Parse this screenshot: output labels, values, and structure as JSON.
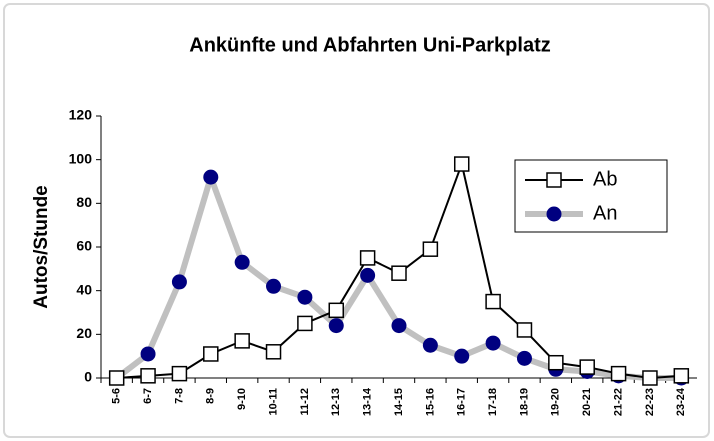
{
  "chart_data": {
    "type": "line",
    "title": "Ankünfte und Abfahrten Uni-Parkplatz",
    "y_label": "Autos/Stunde",
    "categories": [
      "5-6",
      "6-7",
      "7-8",
      "8-9",
      "9-10",
      "10-11",
      "11-12",
      "12-13",
      "13-14",
      "14-15",
      "15-16",
      "16-17",
      "17-18",
      "18-19",
      "19-20",
      "20-21",
      "21-22",
      "22-23",
      "23-24"
    ],
    "series": [
      {
        "name": "Ab",
        "color": "#000000",
        "marker": "square",
        "marker_color": "#ffffff",
        "values": [
          0,
          1,
          2,
          11,
          17,
          12,
          25,
          31,
          55,
          48,
          59,
          98,
          35,
          22,
          7,
          5,
          2,
          0,
          1
        ]
      },
      {
        "name": "An",
        "color": "#c0c0c0",
        "marker": "circle",
        "marker_color": "#000080",
        "values": [
          0,
          11,
          44,
          92,
          53,
          42,
          37,
          24,
          47,
          24,
          15,
          10,
          16,
          9,
          4,
          3,
          1,
          0,
          0
        ]
      }
    ],
    "ylim": [
      0,
      120
    ],
    "yticks": [
      0,
      20,
      40,
      60,
      80,
      100,
      120
    ],
    "grid": false,
    "legend": "upper right"
  }
}
